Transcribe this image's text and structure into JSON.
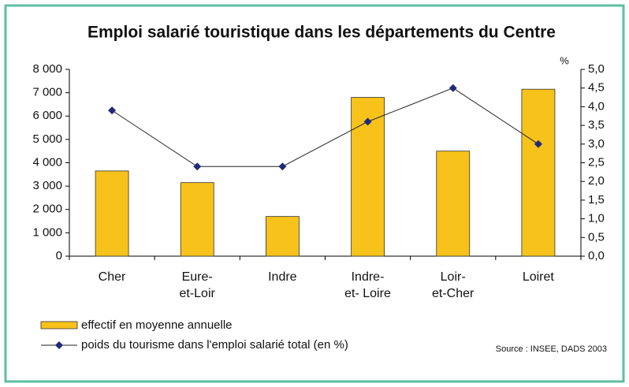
{
  "chart_data": {
    "type": "bar_line",
    "title": "Emploi salarié touristique dans les départements du Centre",
    "y2_label": "%",
    "source": "Source : INSEE, DADS 2003",
    "categories": [
      "Cher",
      "Eure-\net-Loir",
      "Indre",
      "Indre-\net- Loire",
      "Loir-\net-Cher",
      "Loiret"
    ],
    "series": [
      {
        "name": "effectif en moyenne annuelle",
        "type": "bar",
        "color": "#f7c21a",
        "values": [
          3650,
          3150,
          1700,
          6800,
          4500,
          7150
        ]
      },
      {
        "name": "poids du tourisme dans l'emploi salarié total (en %)",
        "type": "line",
        "axis": "y2",
        "color": "#1f2a78",
        "values": [
          3.9,
          2.4,
          2.4,
          3.6,
          4.5,
          3.0
        ]
      }
    ],
    "ylim": [
      0,
      8000
    ],
    "yticks": [
      0,
      {
        "value": 1000,
        "label": "1 000"
      },
      {
        "value": 2000,
        "label": "2 000"
      },
      {
        "value": 3000,
        "label": "3 000"
      },
      {
        "value": 4000,
        "label": "4 000"
      },
      {
        "value": 5000,
        "label": "5 000"
      },
      {
        "value": 6000,
        "label": "6 000"
      },
      {
        "value": 7000,
        "label": "7 000"
      },
      {
        "value": 8000,
        "label": "8 000"
      }
    ],
    "y2lim": [
      0,
      5
    ],
    "y2ticks": [
      {
        "value": 0,
        "label": "0,0"
      },
      {
        "value": 0.5,
        "label": "0,5"
      },
      {
        "value": 1,
        "label": "1,0"
      },
      {
        "value": 1.5,
        "label": "1,5"
      },
      {
        "value": 2,
        "label": "2,0"
      },
      {
        "value": 2.5,
        "label": "2,5"
      },
      {
        "value": 3,
        "label": "3,0"
      },
      {
        "value": 3.5,
        "label": "3,5"
      },
      {
        "value": 4,
        "label": "4,0"
      },
      {
        "value": 4.5,
        "label": "4,5"
      },
      {
        "value": 5,
        "label": "5,0"
      }
    ],
    "grid": false
  }
}
